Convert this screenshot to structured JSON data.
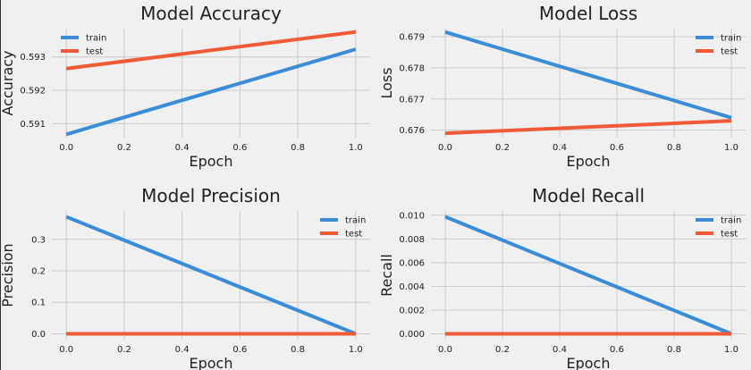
{
  "colors": {
    "train": "#3a8dd6",
    "test": "#f05a35"
  },
  "chart_data": [
    {
      "type": "line",
      "title": "Model Accuracy",
      "xlabel": "Epoch",
      "ylabel": "Accuracy",
      "x": [
        0.0,
        1.0
      ],
      "xlim": [
        -0.05,
        1.05
      ],
      "ylim": [
        0.59058,
        0.59385
      ],
      "xticks": [
        0.0,
        0.2,
        0.4,
        0.6,
        0.8,
        1.0
      ],
      "xtick_labels": [
        "0.0",
        "0.2",
        "0.4",
        "0.6",
        "0.8",
        "1.0"
      ],
      "yticks": [
        0.591,
        0.592,
        0.593
      ],
      "ytick_labels": [
        "0.591",
        "0.592",
        "0.593"
      ],
      "grid": true,
      "legend": "top-left",
      "series": [
        {
          "name": "train",
          "values": [
            0.59068,
            0.59323
          ]
        },
        {
          "name": "test",
          "values": [
            0.59265,
            0.59375
          ]
        }
      ]
    },
    {
      "type": "line",
      "title": "Model Loss",
      "xlabel": "Epoch",
      "ylabel": "Loss",
      "x": [
        0.0,
        1.0
      ],
      "xlim": [
        -0.05,
        1.05
      ],
      "ylim": [
        0.67576,
        0.67926
      ],
      "xticks": [
        0.0,
        0.2,
        0.4,
        0.6,
        0.8,
        1.0
      ],
      "xtick_labels": [
        "0.0",
        "0.2",
        "0.4",
        "0.6",
        "0.8",
        "1.0"
      ],
      "yticks": [
        0.676,
        0.677,
        0.678,
        0.679
      ],
      "ytick_labels": [
        "0.676",
        "0.677",
        "0.678",
        "0.679"
      ],
      "grid": true,
      "legend": "top-right",
      "series": [
        {
          "name": "train",
          "values": [
            0.67915,
            0.6764
          ]
        },
        {
          "name": "test",
          "values": [
            0.6759,
            0.6763
          ]
        }
      ]
    },
    {
      "type": "line",
      "title": "Model Precision",
      "xlabel": "Epoch",
      "ylabel": "Precision",
      "x": [
        0.0,
        1.0
      ],
      "xlim": [
        -0.05,
        1.05
      ],
      "ylim": [
        -0.0186,
        0.3903
      ],
      "xticks": [
        0.0,
        0.2,
        0.4,
        0.6,
        0.8,
        1.0
      ],
      "xtick_labels": [
        "0.0",
        "0.2",
        "0.4",
        "0.6",
        "0.8",
        "1.0"
      ],
      "yticks": [
        0.0,
        0.1,
        0.2,
        0.3
      ],
      "ytick_labels": [
        "0.0",
        "0.1",
        "0.2",
        "0.3"
      ],
      "grid": true,
      "legend": "top-right",
      "series": [
        {
          "name": "train",
          "values": [
            0.3717,
            0.0
          ]
        },
        {
          "name": "test",
          "values": [
            0.0,
            0.0
          ]
        }
      ]
    },
    {
      "type": "line",
      "title": "Model Recall",
      "xlabel": "Epoch",
      "ylabel": "Recall",
      "x": [
        0.0,
        1.0
      ],
      "xlim": [
        -0.05,
        1.05
      ],
      "ylim": [
        -0.00049,
        0.01036
      ],
      "xticks": [
        0.0,
        0.2,
        0.4,
        0.6,
        0.8,
        1.0
      ],
      "xtick_labels": [
        "0.0",
        "0.2",
        "0.4",
        "0.6",
        "0.8",
        "1.0"
      ],
      "yticks": [
        0.0,
        0.002,
        0.004,
        0.006,
        0.008,
        0.01
      ],
      "ytick_labels": [
        "0.000",
        "0.002",
        "0.004",
        "0.006",
        "0.008",
        "0.010"
      ],
      "grid": true,
      "legend": "top-right",
      "series": [
        {
          "name": "train",
          "values": [
            0.00987,
            0.0
          ]
        },
        {
          "name": "test",
          "values": [
            0.0,
            0.0
          ]
        }
      ]
    }
  ]
}
